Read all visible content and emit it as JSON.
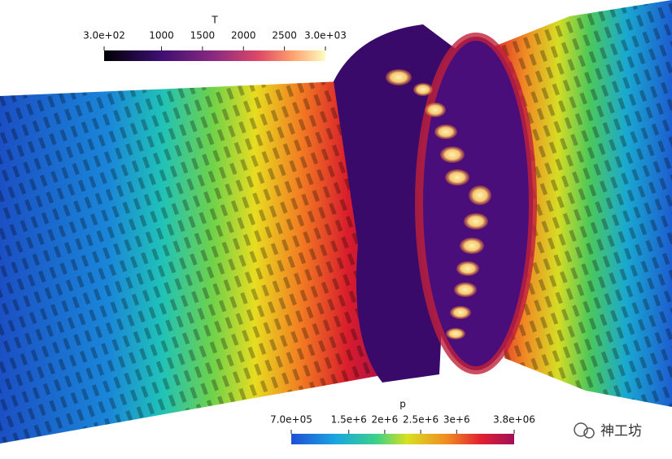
{
  "colorbars": [
    {
      "title": "T",
      "range": [
        300,
        3000
      ],
      "ticks": [
        {
          "value": 300,
          "label": "3.0e+02"
        },
        1000,
        1500,
        2000,
        2500,
        {
          "value": 3000,
          "label": "3.0e+03"
        }
      ]
    },
    {
      "title": "p",
      "range": [
        700000,
        3800000
      ],
      "ticks": [
        {
          "value": 700000,
          "label": "7.0e+05"
        },
        {
          "value": 1500000,
          "label": "1.5e+6"
        },
        {
          "value": 2000000,
          "label": "2e+6"
        },
        {
          "value": 2500000,
          "label": "2.5e+6"
        },
        {
          "value": 3000000,
          "label": "3e+6"
        },
        {
          "value": 3800000,
          "label": "3.8e+06"
        }
      ]
    }
  ],
  "watermark": "神工坊"
}
